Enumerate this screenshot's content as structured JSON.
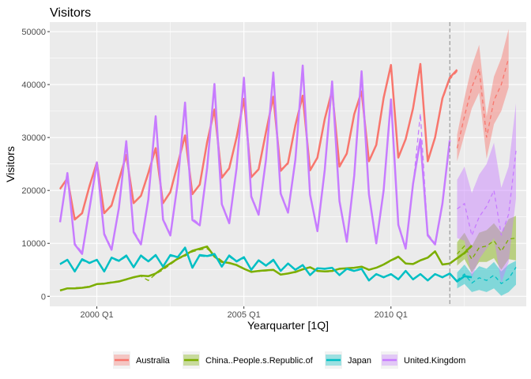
{
  "chart_data": {
    "type": "line",
    "title": "Visitors",
    "xlabel": "Yearquarter [1Q]",
    "ylabel": "Visitors",
    "x_tick_labels": [
      "2000 Q1",
      "2005 Q1",
      "2010 Q1"
    ],
    "x_tick_values": [
      2000,
      2005,
      2010
    ],
    "y_tick_labels": [
      "0",
      "10000",
      "20000",
      "30000",
      "40000",
      "50000"
    ],
    "y_tick_values": [
      0,
      10000,
      20000,
      30000,
      40000,
      50000
    ],
    "xlim": [
      1998.4,
      2014.6
    ],
    "ylim": [
      -1900,
      51800
    ],
    "forecast_start": 2012,
    "grid": true,
    "legend_position": "bottom",
    "series": [
      {
        "name": "Australia",
        "color": "#F8766D",
        "start": 1998.75,
        "observed": [
          20300,
          22300,
          14500,
          15700,
          20800,
          25300,
          15700,
          17200,
          22000,
          26700,
          17600,
          19000,
          23300,
          28000,
          17600,
          19700,
          25000,
          30400,
          19300,
          21100,
          29100,
          35300,
          22400,
          24200,
          30000,
          37300,
          22500,
          24000,
          31000,
          37700,
          23700,
          25200,
          32300,
          37900,
          23800,
          26200,
          33500,
          38900,
          24500,
          27000,
          34400,
          38700,
          25500,
          28600,
          37500,
          43700,
          26200,
          29700,
          35500,
          43900,
          25500,
          30000,
          37400,
          41300,
          42800
        ],
        "fitted": [
          20200,
          22000,
          14800,
          15600,
          20500,
          25000,
          15900,
          17000,
          21800,
          26300,
          17900,
          18800,
          23000,
          27800,
          17800,
          19500,
          24800,
          30000,
          19500,
          21000,
          28800,
          35000,
          22700,
          24000,
          29800,
          37000,
          22800,
          23800,
          30800,
          37400,
          24000,
          25000,
          32000,
          37600,
          24100,
          26000,
          33300,
          38700,
          24800,
          26800,
          34200,
          38500,
          25800,
          28400,
          37200,
          43500,
          26500,
          29500,
          35300,
          43600,
          25800,
          29800,
          37100,
          41000,
          42500
        ],
        "forecast": [
          28000,
          34000,
          39500,
          43000,
          30000,
          37000,
          40000,
          45000
        ],
        "lower": [
          25500,
          30500,
          35500,
          38500,
          26000,
          32500,
          35000,
          39500
        ],
        "upper": [
          30500,
          37500,
          43500,
          47500,
          34000,
          41500,
          45000,
          50500
        ]
      },
      {
        "name": "China..People.s.Republic.of",
        "color": "#7CAE00",
        "start": 1998.75,
        "observed": [
          1100,
          1500,
          1500,
          1600,
          1800,
          2300,
          2400,
          2600,
          2800,
          3200,
          3600,
          3900,
          3800,
          4300,
          5300,
          6200,
          7100,
          7800,
          8600,
          9000,
          9400,
          7500,
          6500,
          6300,
          5900,
          5200,
          4600,
          4800,
          4900,
          5000,
          4100,
          4300,
          4600,
          5100,
          5500,
          4800,
          4700,
          4800,
          5200,
          5300,
          5400,
          5600,
          5000,
          5400,
          6000,
          6800,
          7500,
          6200,
          6100,
          6800,
          7300,
          8500,
          6000,
          6200,
          7200,
          8200,
          9600
        ],
        "fitted": [
          1200,
          1400,
          1600,
          1700,
          1900,
          2200,
          2500,
          2700,
          2900,
          3100,
          3500,
          3800,
          3000,
          4200,
          5000,
          6000,
          7000,
          7600,
          8400,
          8800,
          9000,
          7800,
          6700,
          6200,
          6000,
          5300,
          4700,
          4700,
          4800,
          4900,
          4200,
          4300,
          4500,
          5000,
          5400,
          4900,
          4600,
          4700,
          5100,
          5200,
          5300,
          5500,
          5100,
          5300,
          5900,
          6700,
          7300,
          6300,
          6000,
          6700,
          7200,
          8300,
          6100,
          6100,
          7100,
          8000,
          9400
        ],
        "forecast": [
          8000,
          9500,
          7000,
          9200,
          9500,
          10500,
          8500,
          10800,
          11000
        ],
        "lower": [
          5800,
          7000,
          4500,
          6500,
          6500,
          7200,
          5000,
          7000,
          6800
        ],
        "upper": [
          10200,
          12000,
          9500,
          12000,
          12500,
          13800,
          12000,
          14600,
          15200
        ]
      },
      {
        "name": "Japan",
        "color": "#00BFC4",
        "start": 1998.75,
        "observed": [
          6100,
          6900,
          4700,
          7000,
          6300,
          6900,
          4700,
          7300,
          6700,
          7700,
          5500,
          7700,
          6600,
          7800,
          5600,
          7800,
          7400,
          9200,
          5400,
          7800,
          7600,
          8000,
          5600,
          7700,
          6600,
          7400,
          5000,
          6800,
          5800,
          6900,
          4800,
          6200,
          5000,
          5900,
          4000,
          5300,
          5200,
          5400,
          4000,
          5200,
          4800,
          5200,
          3000,
          4200,
          3600,
          4200,
          3200,
          4800,
          3200,
          4200,
          3000,
          4200,
          3600,
          4300,
          2800,
          3800,
          3600
        ],
        "fitted": [
          6000,
          6800,
          4900,
          6800,
          6200,
          6800,
          4900,
          7100,
          6600,
          7500,
          5600,
          7500,
          6500,
          7600,
          5700,
          7600,
          7300,
          9000,
          5500,
          7600,
          7500,
          7800,
          5700,
          7500,
          6500,
          7200,
          5100,
          6700,
          5700,
          6700,
          4900,
          6100,
          4900,
          5800,
          4100,
          5200,
          5100,
          5300,
          4100,
          5100,
          4700,
          5100,
          3100,
          4100,
          3500,
          4100,
          3300,
          4700,
          3300,
          4100,
          3100,
          4100,
          3500,
          4200,
          2900,
          3700,
          3500
        ],
        "forecast": [
          3000,
          4200,
          2500,
          3500,
          3000,
          4000,
          2400,
          3300,
          5500
        ],
        "lower": [
          1500,
          2300,
          800,
          1200,
          800,
          1500,
          100,
          800,
          2200
        ],
        "upper": [
          4500,
          6000,
          4200,
          5700,
          5200,
          6500,
          4700,
          6000,
          6700
        ]
      },
      {
        "name": "United.Kingdom",
        "color": "#C77CFF",
        "start": 1998.75,
        "observed": [
          14000,
          23300,
          9800,
          8000,
          16500,
          25300,
          11700,
          8800,
          16700,
          29300,
          12100,
          9800,
          18300,
          34000,
          14500,
          11500,
          21400,
          36600,
          14400,
          13400,
          24200,
          40100,
          17400,
          13800,
          24200,
          41300,
          18800,
          15400,
          25800,
          42300,
          19400,
          15800,
          25800,
          43600,
          19200,
          12300,
          23900,
          40600,
          18000,
          10300,
          22800,
          42500,
          19300,
          10000,
          20000,
          37200,
          13500,
          9000,
          21200,
          29700,
          11500,
          9800,
          17500,
          29500
        ],
        "fitted": [
          14500,
          22800,
          10000,
          8300,
          16200,
          25000,
          12000,
          9000,
          16400,
          29000,
          12400,
          10000,
          18000,
          33700,
          14800,
          11700,
          21100,
          36300,
          14700,
          13600,
          23900,
          39800,
          17700,
          14000,
          23900,
          41000,
          19100,
          15600,
          25500,
          42000,
          19700,
          16000,
          25500,
          43300,
          19500,
          12500,
          23600,
          40300,
          18300,
          10500,
          22500,
          42200,
          19600,
          10200,
          19700,
          36900,
          13800,
          9200,
          20900,
          34500,
          11800,
          10000,
          17200,
          29200
        ],
        "forecast": [
          16500,
          17500,
          11500,
          15000,
          17000,
          20000,
          11500,
          15500,
          27500
        ],
        "lower": [
          11000,
          10500,
          3500,
          7000,
          9000,
          11000,
          2500,
          6500,
          18500
        ],
        "upper": [
          22000,
          24500,
          19500,
          23000,
          25000,
          29000,
          20500,
          24500,
          36500
        ]
      }
    ]
  }
}
